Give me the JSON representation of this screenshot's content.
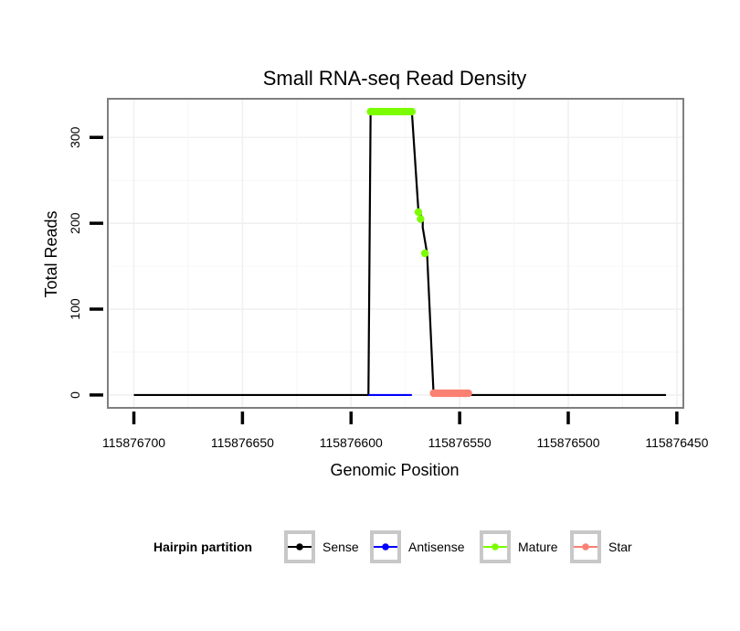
{
  "chart_data": {
    "type": "line",
    "title": "Small RNA-seq Read Density",
    "xlabel": "Genomic Position",
    "ylabel": "Total Reads",
    "xlim": [
      115876712,
      115876447
    ],
    "x_reversed": true,
    "ylim": [
      -15,
      345
    ],
    "xticks": [
      115876700,
      115876650,
      115876600,
      115876550,
      115876500,
      115876450
    ],
    "xtick_labels": [
      "115876700",
      "115876650",
      "115876600",
      "115876550",
      "115876500",
      "115876450"
    ],
    "yticks": [
      0,
      100,
      200,
      300
    ],
    "ytick_labels": [
      "0",
      "100",
      "200",
      "300"
    ],
    "grid": true,
    "legend": {
      "title": "Hairpin partition",
      "position": "bottom",
      "entries": [
        "Sense",
        "Antisense",
        "Mature",
        "Star"
      ]
    },
    "colors": {
      "Sense": "#000000",
      "Antisense": "#0000ff",
      "Mature": "#7cfc00",
      "Star": "#fa8072"
    },
    "series": [
      {
        "name": "Sense",
        "style": "line",
        "x": [
          115876700,
          115876592,
          115876591,
          115876572,
          115876569,
          115876567,
          115876567,
          115876565,
          115876562,
          115876561,
          115876557,
          115876455
        ],
        "y": [
          0,
          0,
          330,
          330,
          215,
          205,
          195,
          165,
          1,
          1,
          0,
          0
        ]
      },
      {
        "name": "Antisense",
        "style": "line",
        "x": [
          115876592,
          115876572
        ],
        "y": [
          0,
          0
        ]
      },
      {
        "name": "Mature",
        "style": "points",
        "x": [
          115876591,
          115876590,
          115876589,
          115876588,
          115876587,
          115876586,
          115876585,
          115876584,
          115876583,
          115876582,
          115876581,
          115876580,
          115876579,
          115876578,
          115876577,
          115876576,
          115876575,
          115876574,
          115876573,
          115876572,
          115876569,
          115876568,
          115876566
        ],
        "y": [
          330,
          330,
          330,
          330,
          330,
          330,
          330,
          330,
          330,
          330,
          330,
          330,
          330,
          330,
          330,
          330,
          330,
          330,
          330,
          330,
          213,
          205,
          165
        ]
      },
      {
        "name": "Star",
        "style": "points",
        "x": [
          115876562,
          115876561,
          115876560,
          115876559,
          115876558,
          115876557,
          115876556,
          115876555,
          115876554,
          115876553,
          115876552,
          115876551,
          115876550,
          115876549,
          115876548,
          115876547,
          115876546
        ],
        "y": [
          2,
          2,
          2,
          2,
          2,
          2,
          2,
          2,
          2,
          2,
          2,
          2,
          2,
          2,
          2,
          2,
          2
        ]
      }
    ]
  }
}
